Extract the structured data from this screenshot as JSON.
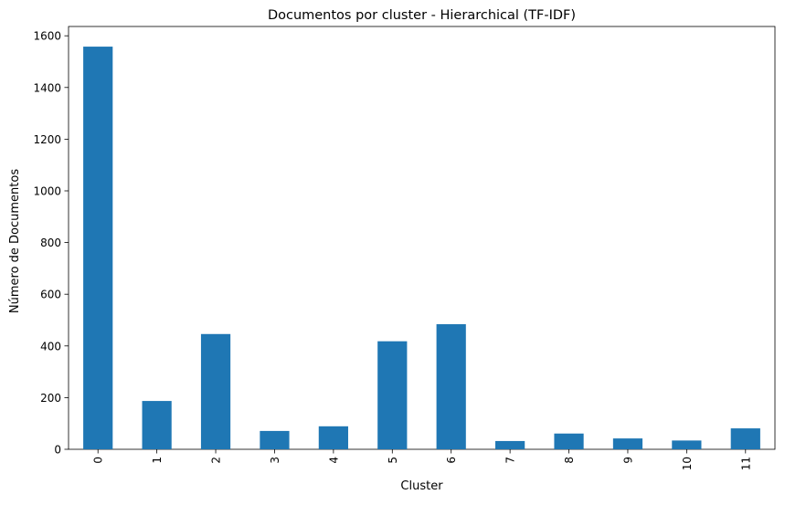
{
  "chart_data": {
    "type": "bar",
    "title": "Documentos por cluster - Hierarchical (TF-IDF)",
    "xlabel": "Cluster",
    "ylabel": "Número de Documentos",
    "categories": [
      "0",
      "1",
      "2",
      "3",
      "4",
      "5",
      "6",
      "7",
      "8",
      "9",
      "10",
      "11"
    ],
    "values": [
      1558,
      187,
      446,
      71,
      89,
      418,
      484,
      32,
      61,
      42,
      34,
      81
    ],
    "ylim": [
      0,
      1636
    ],
    "yticks": [
      0,
      200,
      400,
      600,
      800,
      1000,
      1200,
      1400,
      1600
    ],
    "x_tick_rotation": "vertical",
    "grid": false,
    "legend": "none",
    "bar_color": "#1f77b4"
  }
}
